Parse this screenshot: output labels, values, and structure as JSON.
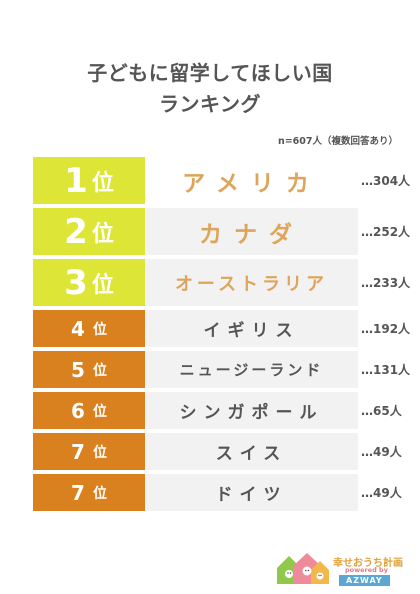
{
  "title": {
    "line1": "子どもに留学してほしい国",
    "line2": "ランキング"
  },
  "note": "n=607人（複数回答あり）",
  "rank_unit": "位",
  "rankings": [
    {
      "rank": "1",
      "country": "アメリカ",
      "count": "…304人"
    },
    {
      "rank": "2",
      "country": "カナダ",
      "count": "…252人"
    },
    {
      "rank": "3",
      "country": "オーストラリア",
      "count": "…233人"
    },
    {
      "rank": "4",
      "country": "イギリス",
      "count": "…192人"
    },
    {
      "rank": "5",
      "country": "ニュージーランド",
      "count": "…131人"
    },
    {
      "rank": "6",
      "country": "シンガポール",
      "count": "…65人"
    },
    {
      "rank": "7",
      "country": "スイス",
      "count": "…49人"
    },
    {
      "rank": "7",
      "country": "ドイツ",
      "count": "…49人"
    }
  ],
  "logo": {
    "name": "幸せおうち計画",
    "powered_by": "powered by",
    "brand": "AZWAY",
    "icon": "house-family-logo-icon"
  },
  "colors": {
    "top_badge": "#dde637",
    "low_badge": "#d9811f",
    "top_country_text": "#dea55a",
    "row_background": "#f2f2f2"
  }
}
